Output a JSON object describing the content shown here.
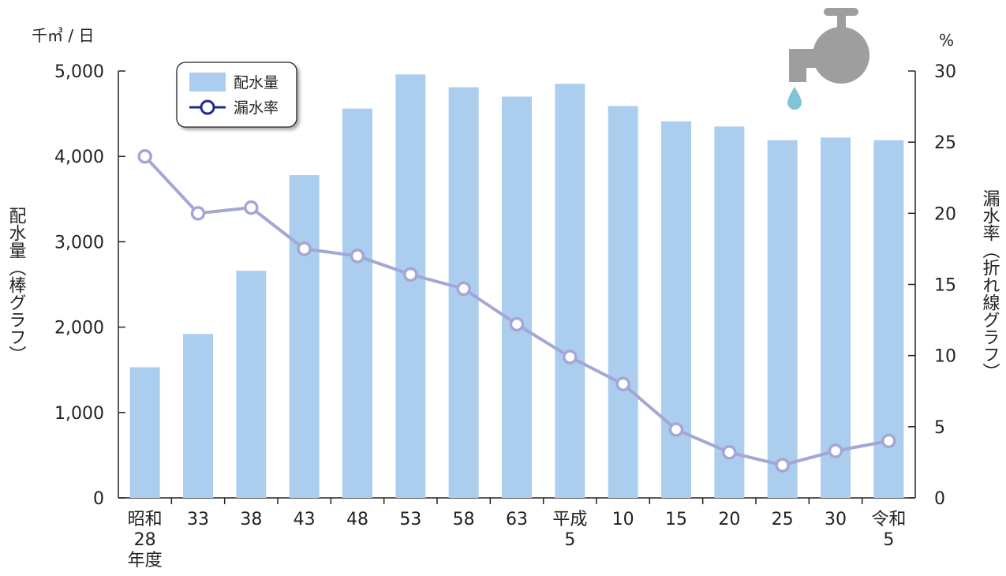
{
  "colors": {
    "bar": "#abcdee",
    "line": "#a4a6d4",
    "marker_stroke": "#a4a6d4",
    "marker_fill": "#ffffff",
    "legend_line": "#1e2b8a",
    "axis": "#222222",
    "faucet": "#9e9e9e",
    "drop": "#7fc4d8"
  },
  "chart_data": {
    "type": "bar+line",
    "categories": [
      [
        "昭和",
        "28",
        "年度"
      ],
      [
        "33"
      ],
      [
        "38"
      ],
      [
        "43"
      ],
      [
        "48"
      ],
      [
        "53"
      ],
      [
        "58"
      ],
      [
        "63"
      ],
      [
        "平成",
        "5"
      ],
      [
        "10"
      ],
      [
        "15"
      ],
      [
        "20"
      ],
      [
        "25"
      ],
      [
        "30"
      ],
      [
        "令和",
        "5"
      ]
    ],
    "series": [
      {
        "name": "配水量",
        "type": "bar",
        "axis": "left",
        "values": [
          1530,
          1920,
          2660,
          3780,
          4560,
          4960,
          4810,
          4700,
          4850,
          4590,
          4410,
          4350,
          4190,
          4220,
          4190
        ]
      },
      {
        "name": "漏水率",
        "type": "line",
        "axis": "right",
        "values": [
          24.0,
          20.0,
          20.4,
          17.5,
          17.0,
          15.7,
          14.7,
          12.2,
          9.9,
          8.0,
          4.8,
          3.2,
          2.3,
          3.3,
          4.0
        ]
      }
    ],
    "y_left": {
      "unit": "千㎥ / 日",
      "label": "配水量（棒グラフ）",
      "lim": [
        0,
        5000
      ],
      "ticks": [
        0,
        1000,
        2000,
        3000,
        4000,
        5000
      ],
      "tick_labels": [
        "0",
        "1,000",
        "2,000",
        "3,000",
        "4,000",
        "5,000"
      ]
    },
    "y_right": {
      "unit": "%",
      "label": "漏水率（折れ線グラフ）",
      "lim": [
        0,
        30
      ],
      "ticks": [
        0,
        5,
        10,
        15,
        20,
        25,
        30
      ],
      "tick_labels": [
        "0",
        "5",
        "10",
        "15",
        "20",
        "25",
        "30"
      ]
    },
    "legend": {
      "placement": "top-left",
      "entries": [
        "配水量",
        "漏水率"
      ]
    },
    "grid": false
  },
  "decoration": {
    "icon": "faucet-icon"
  }
}
